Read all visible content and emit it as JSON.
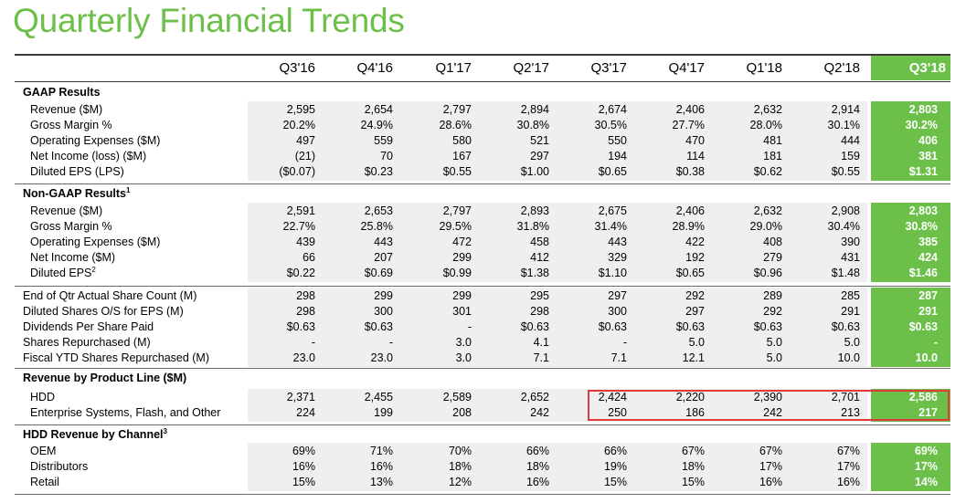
{
  "title": "Quarterly Financial Trends",
  "colors": {
    "accent": "#6cc04a",
    "band": "#efefef",
    "highlight_box": "#e03a3a"
  },
  "quarters": [
    "Q3'16",
    "Q4'16",
    "Q1'17",
    "Q2'17",
    "Q3'17",
    "Q4'17",
    "Q1'18",
    "Q2'18",
    "Q3'18"
  ],
  "sections": [
    {
      "title": "GAAP Results",
      "sup": "",
      "rows": [
        {
          "label": "Revenue ($M)",
          "sup": "",
          "values": [
            "2,595",
            "2,654",
            "2,797",
            "2,894",
            "2,674",
            "2,406",
            "2,632",
            "2,914",
            "2,803"
          ]
        },
        {
          "label": "Gross Margin %",
          "sup": "",
          "values": [
            "20.2%",
            "24.9%",
            "28.6%",
            "30.8%",
            "30.5%",
            "27.7%",
            "28.0%",
            "30.1%",
            "30.2%"
          ]
        },
        {
          "label": "Operating Expenses ($M)",
          "sup": "",
          "values": [
            "497",
            "559",
            "580",
            "521",
            "550",
            "470",
            "481",
            "444",
            "406"
          ]
        },
        {
          "label": "Net Income (loss) ($M)",
          "sup": "",
          "values": [
            "(21)",
            "70",
            "167",
            "297",
            "194",
            "114",
            "181",
            "159",
            "381"
          ]
        },
        {
          "label": "Diluted EPS (LPS)",
          "sup": "",
          "values": [
            "($0.07)",
            "$0.23",
            "$0.55",
            "$1.00",
            "$0.65",
            "$0.38",
            "$0.62",
            "$0.55",
            "$1.31"
          ]
        }
      ]
    },
    {
      "title": "Non-GAAP Results",
      "sup": "1",
      "rows": [
        {
          "label": "Revenue ($M)",
          "sup": "",
          "values": [
            "2,591",
            "2,653",
            "2,797",
            "2,893",
            "2,675",
            "2,406",
            "2,632",
            "2,908",
            "2,803"
          ]
        },
        {
          "label": "Gross Margin %",
          "sup": "",
          "values": [
            "22.7%",
            "25.8%",
            "29.5%",
            "31.8%",
            "31.4%",
            "28.9%",
            "29.0%",
            "30.4%",
            "30.8%"
          ]
        },
        {
          "label": "Operating Expenses ($M)",
          "sup": "",
          "values": [
            "439",
            "443",
            "472",
            "458",
            "443",
            "422",
            "408",
            "390",
            "385"
          ]
        },
        {
          "label": "Net Income ($M)",
          "sup": "",
          "values": [
            "66",
            "207",
            "299",
            "412",
            "329",
            "192",
            "279",
            "431",
            "424"
          ]
        },
        {
          "label": "Diluted EPS",
          "sup": "2",
          "values": [
            "$0.22",
            "$0.69",
            "$0.99",
            "$1.38",
            "$1.10",
            "$0.65",
            "$0.96",
            "$1.48",
            "$1.46"
          ]
        }
      ]
    },
    {
      "title": "",
      "sup": "",
      "rows": [
        {
          "label": "End of Qtr Actual Share Count (M)",
          "sup": "",
          "values": [
            "298",
            "299",
            "299",
            "295",
            "297",
            "292",
            "289",
            "285",
            "287"
          ]
        },
        {
          "label": "Diluted Shares O/S for EPS (M)",
          "sup": "",
          "values": [
            "298",
            "300",
            "301",
            "298",
            "300",
            "297",
            "292",
            "291",
            "291"
          ]
        },
        {
          "label": "Dividends Per Share Paid",
          "sup": "",
          "values": [
            "$0.63",
            "$0.63",
            "-",
            "$0.63",
            "$0.63",
            "$0.63",
            "$0.63",
            "$0.63",
            "$0.63"
          ]
        },
        {
          "label": "Shares Repurchased (M)",
          "sup": "",
          "values": [
            "-",
            "-",
            "3.0",
            "4.1",
            "-",
            "5.0",
            "5.0",
            "5.0",
            "-"
          ]
        },
        {
          "label": "Fiscal YTD Shares Repurchased (M)",
          "sup": "",
          "values": [
            "23.0",
            "23.0",
            "3.0",
            "7.1",
            "7.1",
            "12.1",
            "5.0",
            "10.0",
            "10.0"
          ]
        }
      ]
    },
    {
      "title": "Revenue by Product Line ($M)",
      "sup": "",
      "rows": [
        {
          "label": "HDD",
          "sup": "",
          "values": [
            "2,371",
            "2,455",
            "2,589",
            "2,652",
            "2,424",
            "2,220",
            "2,390",
            "2,701",
            "2,586"
          ]
        },
        {
          "label": "Enterprise Systems, Flash, and Other",
          "sup": "",
          "values": [
            "224",
            "199",
            "208",
            "242",
            "250",
            "186",
            "242",
            "213",
            "217"
          ]
        }
      ]
    },
    {
      "title": "HDD Revenue by Channel",
      "sup": "3",
      "rows": [
        {
          "label": "OEM",
          "sup": "",
          "values": [
            "69%",
            "71%",
            "70%",
            "66%",
            "66%",
            "67%",
            "67%",
            "67%",
            "69%"
          ]
        },
        {
          "label": "Distributors",
          "sup": "",
          "values": [
            "16%",
            "16%",
            "18%",
            "18%",
            "19%",
            "18%",
            "17%",
            "17%",
            "17%"
          ]
        },
        {
          "label": "Retail",
          "sup": "",
          "values": [
            "15%",
            "13%",
            "12%",
            "16%",
            "15%",
            "15%",
            "16%",
            "16%",
            "14%"
          ]
        }
      ]
    }
  ]
}
